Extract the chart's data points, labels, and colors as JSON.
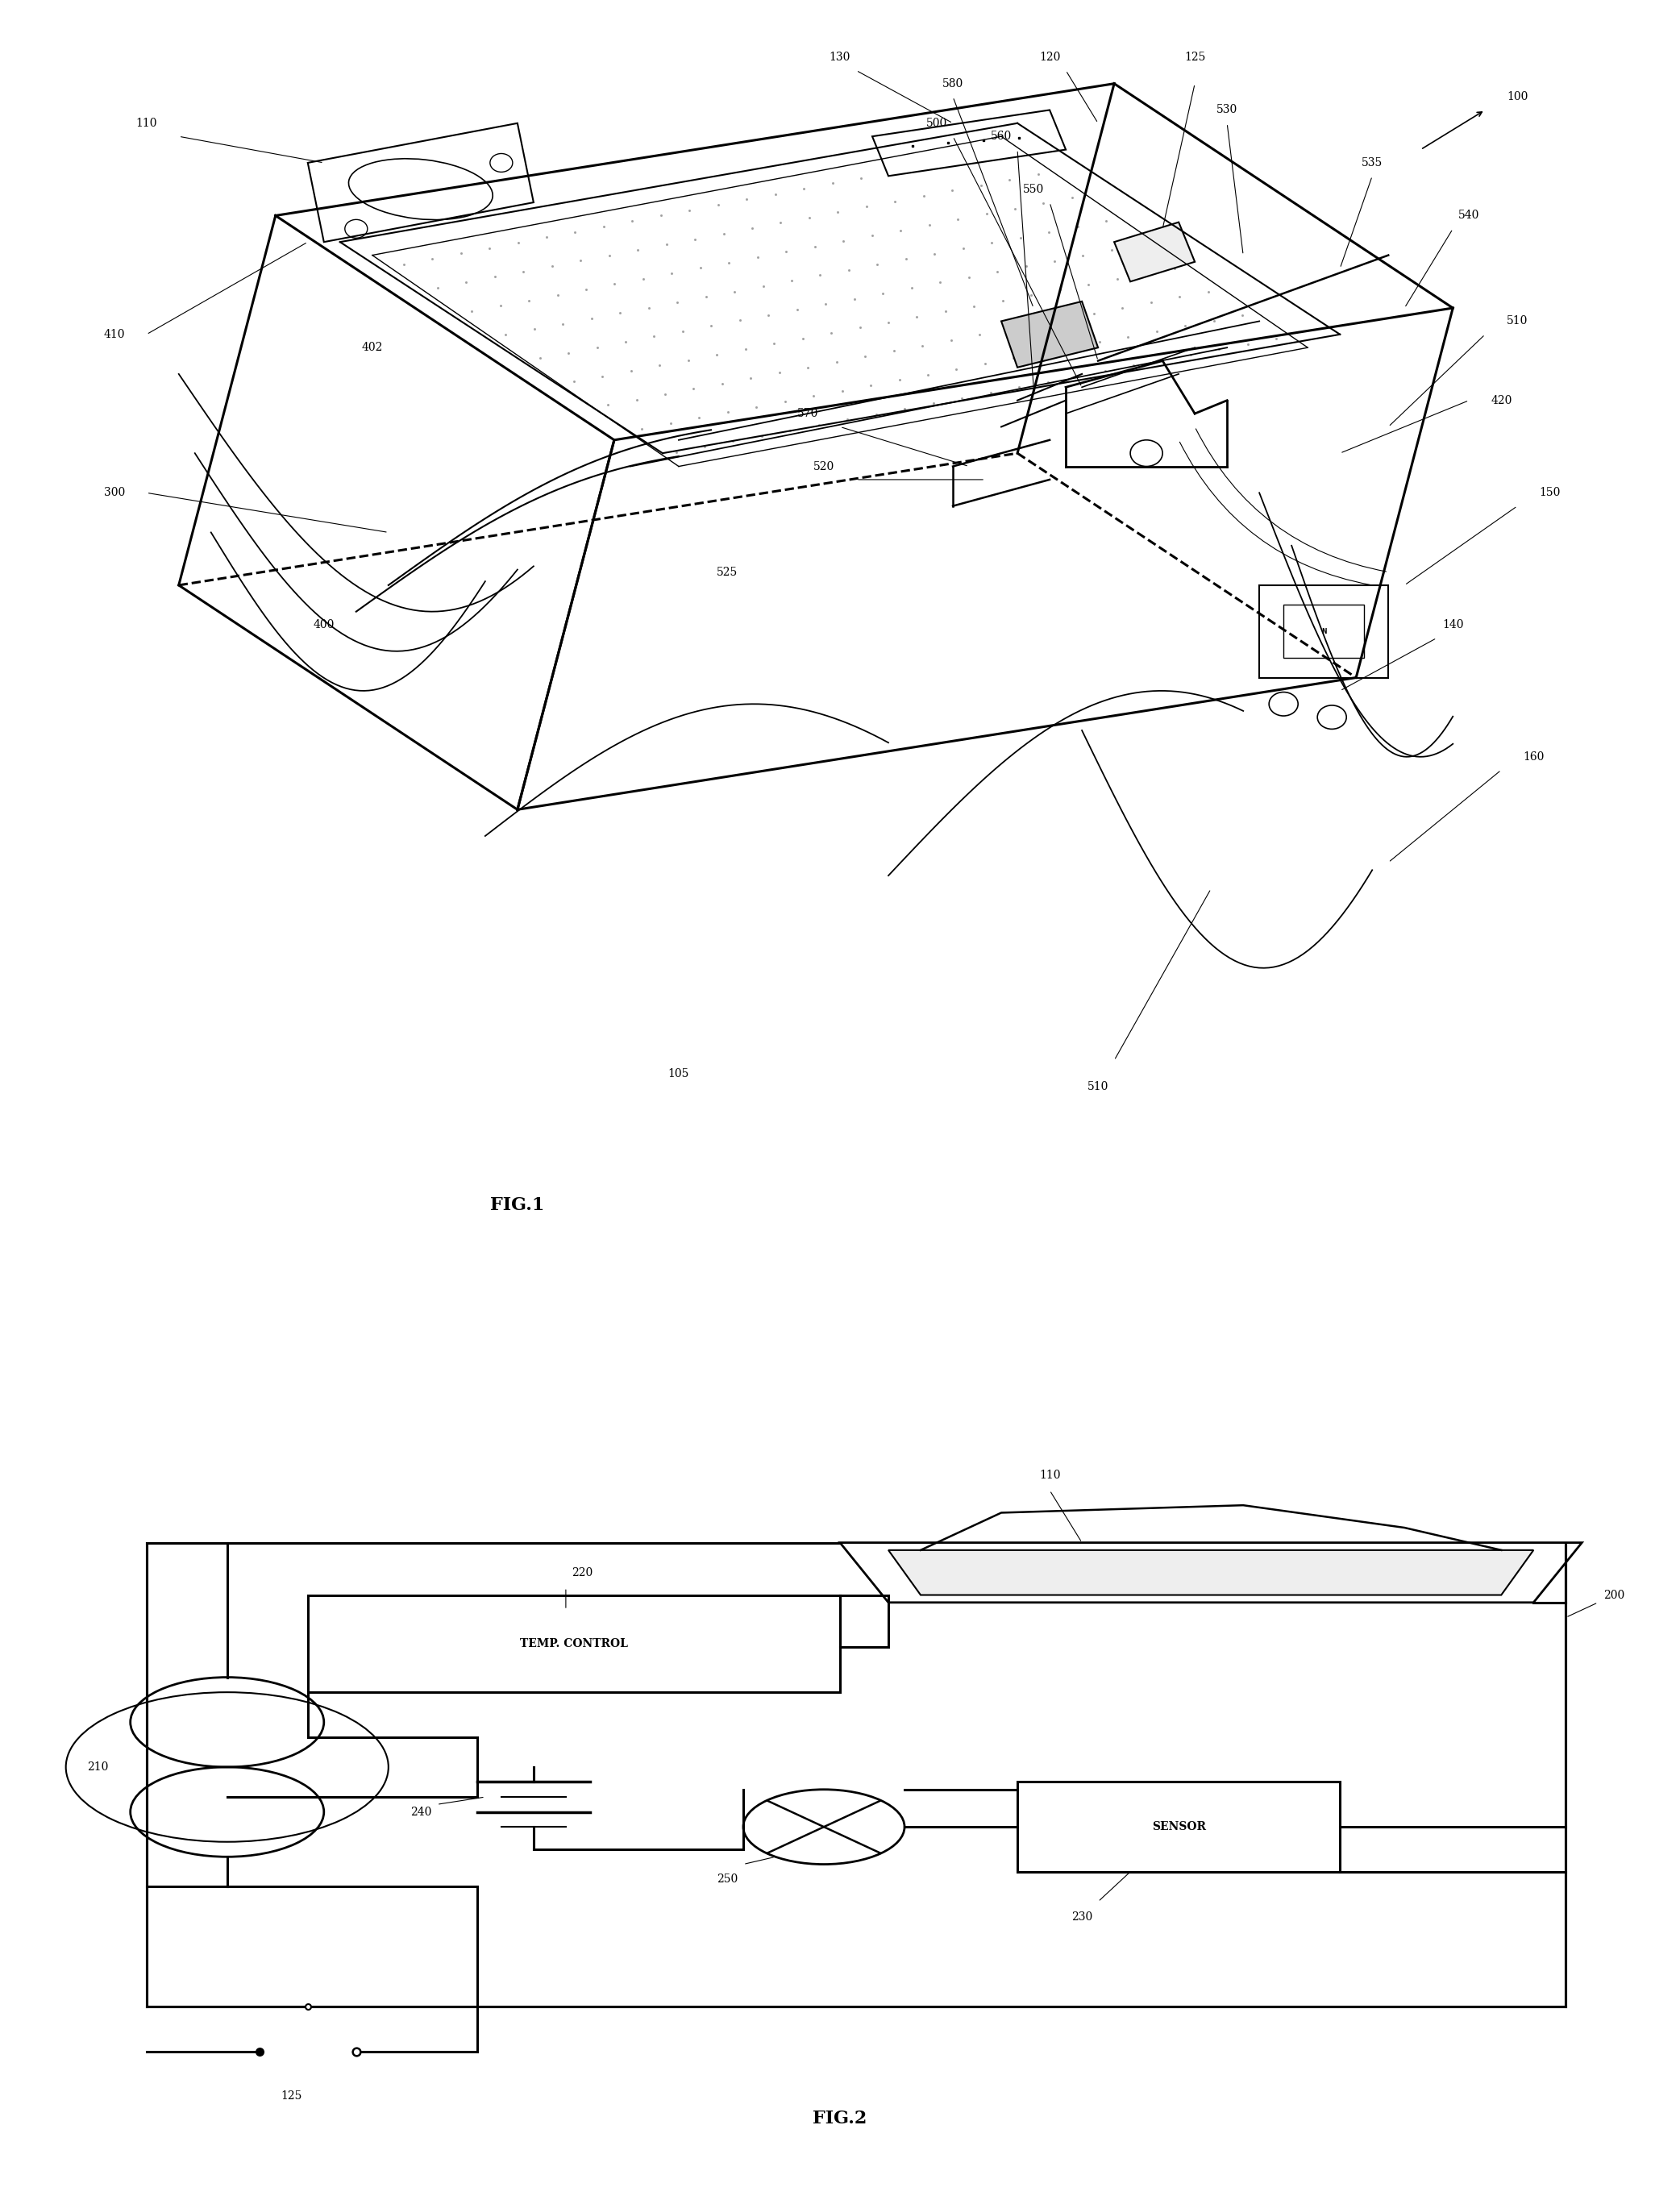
{
  "bg_color": "#ffffff",
  "fig_width": 20.84,
  "fig_height": 27.29,
  "fig1_label": "FIG.1",
  "fig2_label": "FIG.2",
  "temp_control_label": "TEMP. CONTROL",
  "sensor_label": "SENSOR",
  "line_color": "#000000"
}
